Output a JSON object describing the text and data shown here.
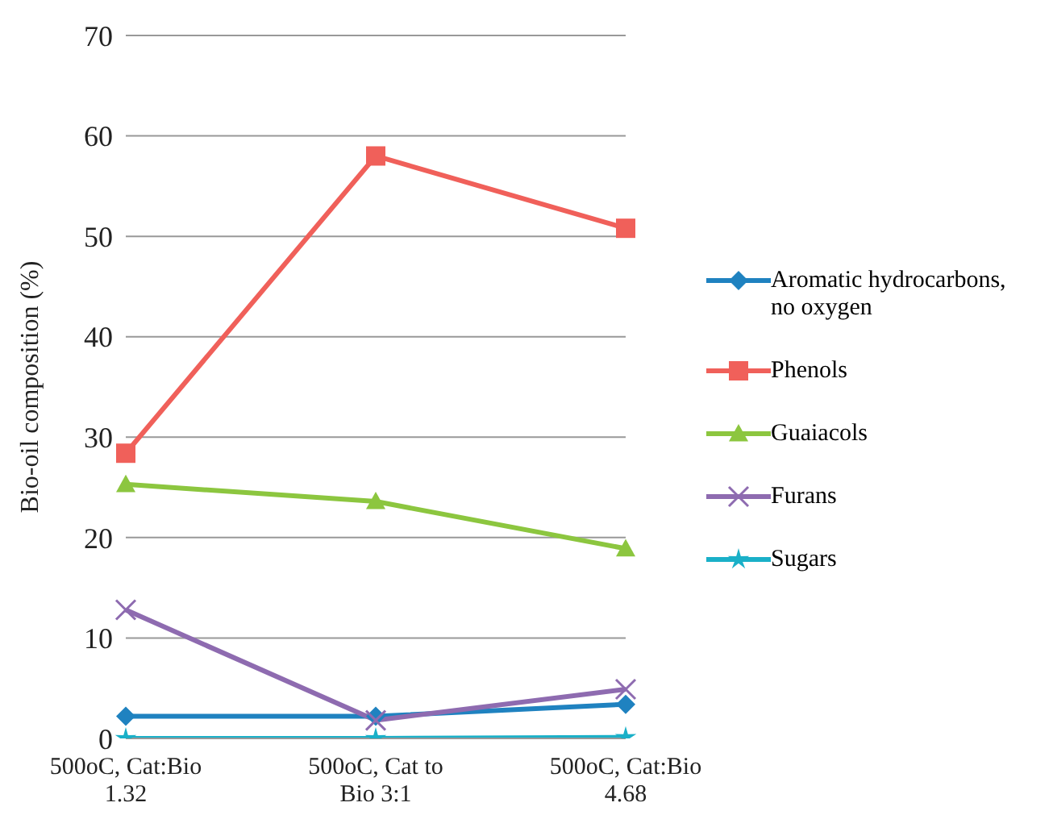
{
  "chart_data": {
    "type": "line",
    "ylabel": "Bio-oil composition (%)",
    "categories": [
      "500oC, Cat:Bio 1.32",
      "500oC, Cat to Bio 3:1",
      "500oC, Cat:Bio 4.68"
    ],
    "series": [
      {
        "name": "Aromatic hydrocarbons, no oxygen",
        "color": "#1f82c0",
        "marker": "diamond",
        "values": [
          2.2,
          2.2,
          3.4
        ]
      },
      {
        "name": "Phenols",
        "color": "#f0605a",
        "marker": "square",
        "values": [
          28.4,
          58,
          50.8
        ]
      },
      {
        "name": "Guaiacols",
        "color": "#8cc63f",
        "marker": "triangle",
        "values": [
          25.3,
          23.6,
          18.9
        ]
      },
      {
        "name": "Furans",
        "color": "#8e6bb0",
        "marker": "cross",
        "values": [
          12.8,
          1.8,
          4.9
        ]
      },
      {
        "name": "Sugars",
        "color": "#1ab0c8",
        "marker": "star",
        "values": [
          0,
          0,
          0.1
        ]
      }
    ],
    "ylim": [
      0,
      70
    ],
    "yticks": [
      0,
      10,
      20,
      30,
      40,
      50,
      60,
      70
    ],
    "grid": "y",
    "legend": "right",
    "line_style": "solid"
  }
}
